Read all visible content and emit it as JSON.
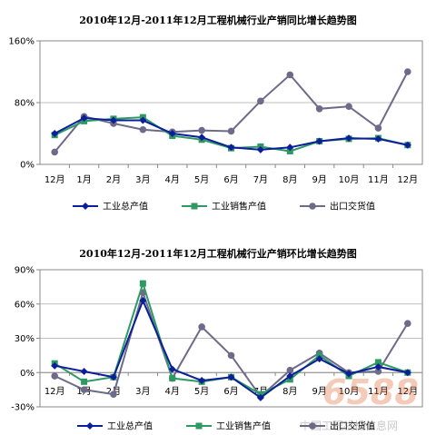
{
  "chart_data": [
    {
      "type": "line",
      "title": "2010年12月-2011年12月工程机械行业产销同比增长趋势图",
      "categories": [
        "12月",
        "1月",
        "2月",
        "3月",
        "4月",
        "5月",
        "6月",
        "7月",
        "8月",
        "9月",
        "10月",
        "11月",
        "12月"
      ],
      "y_ticks": [
        "0%",
        "80%",
        "160%"
      ],
      "ylim": [
        0,
        160
      ],
      "y_unit": "%",
      "series": [
        {
          "name": "工业总产值",
          "color": "#0b1f9b",
          "marker": "diamond",
          "values": [
            40,
            60,
            57,
            57,
            40,
            35,
            22,
            19,
            22,
            30,
            34,
            33,
            25
          ]
        },
        {
          "name": "工业销售产值",
          "color": "#2e9a62",
          "marker": "square",
          "values": [
            38,
            56,
            59,
            61,
            37,
            32,
            21,
            23,
            17,
            30,
            33,
            34,
            25
          ]
        },
        {
          "name": "出口交货值",
          "color": "#6e6a8a",
          "marker": "circle",
          "values": [
            16,
            62,
            53,
            45,
            42,
            44,
            43,
            82,
            116,
            72,
            75,
            47,
            120
          ]
        }
      ]
    },
    {
      "type": "line",
      "title": "2010年12月-2011年12月工程机械行业产销环比增长趋势图",
      "categories": [
        "12月",
        "1月",
        "2月",
        "3月",
        "4月",
        "5月",
        "6月",
        "7月",
        "8月",
        "9月",
        "10月",
        "11月",
        "12月"
      ],
      "y_ticks": [
        "-30%",
        "0%",
        "30%",
        "60%",
        "90%"
      ],
      "ylim": [
        -30,
        90
      ],
      "y_unit": "%",
      "series": [
        {
          "name": "工业总产值",
          "color": "#0b1f9b",
          "marker": "diamond",
          "values": [
            6,
            1,
            -4,
            63,
            3,
            -7,
            -4,
            -22,
            -3,
            12,
            -1,
            5,
            0
          ]
        },
        {
          "name": "工业销售产值",
          "color": "#2e9a62",
          "marker": "square",
          "values": [
            8,
            -8,
            -4,
            78,
            -5,
            -8,
            -4,
            -19,
            -6,
            15,
            -3,
            9,
            0
          ]
        },
        {
          "name": "出口交货值",
          "color": "#6e6a8a",
          "marker": "circle",
          "values": [
            -3,
            -15,
            -19,
            70,
            -5,
            40,
            15,
            -21,
            2,
            17,
            0,
            1,
            43
          ]
        }
      ]
    }
  ],
  "watermark": {
    "number": "6588",
    "text": "中国工程机械信息网"
  }
}
